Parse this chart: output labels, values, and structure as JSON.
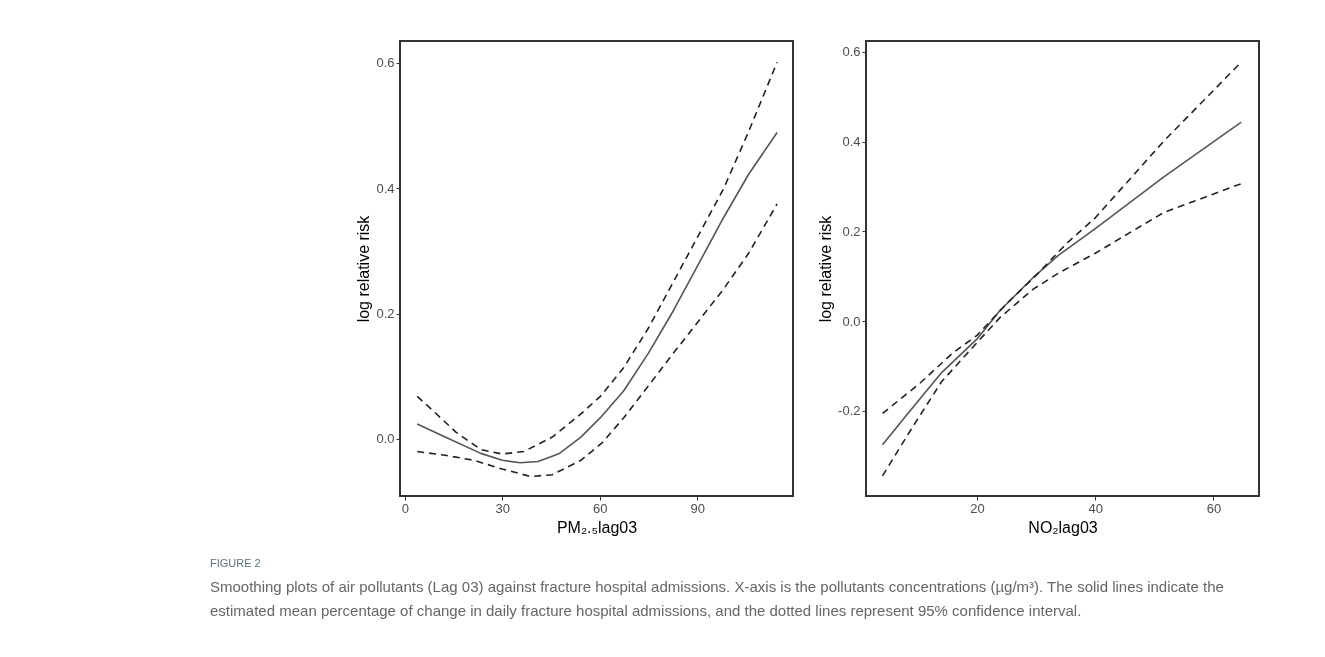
{
  "chart_data": [
    {
      "type": "line",
      "xlabel": "PM₂.₅lag03",
      "ylabel": "log relative risk",
      "xlim": [
        -1.5,
        119.5
      ],
      "ylim": [
        -0.091,
        0.635
      ],
      "xticks": [
        0,
        30,
        60,
        90
      ],
      "yticks": [
        {
          "value": 0,
          "label": "0.0"
        },
        {
          "value": 0.2,
          "label": "0.2"
        },
        {
          "value": 0.4,
          "label": "0.4"
        },
        {
          "value": 0.6,
          "label": "0.6"
        }
      ],
      "annotations": [
        "FIGURE 2",
        "Smoothing plots of air pollutants (Lag 03) against fracture hospital admissions. X-axis is the pollutants concentrations (µg/m³). The solid lines indicate the estimated mean percentage of change in daily fracture hospital admissions, and the dotted lines represent 95% confidence interval."
      ],
      "series": [
        {
          "color": "#555555",
          "line_style": "solid",
          "x": [
            3.8,
            12.4,
            23.4,
            30,
            35.5,
            41,
            47.6,
            54.2,
            60.2,
            67.4,
            75,
            82.7,
            90.4,
            98.1,
            105.8,
            114.6
          ],
          "values": [
            0.024,
            0.003,
            -0.023,
            -0.034,
            -0.038,
            -0.036,
            -0.023,
            0.003,
            0.034,
            0.077,
            0.137,
            0.205,
            0.279,
            0.353,
            0.422,
            0.489
          ]
        },
        {
          "color": "#222222",
          "line_style": "dashed",
          "x": [
            3.8,
            9.1,
            15.7,
            23.4,
            30,
            36.6,
            45.4,
            54.2,
            60.2,
            67.4,
            75,
            82.7,
            90.4,
            98.1,
            105.8,
            114.6
          ],
          "values": [
            0.068,
            0.043,
            0.011,
            -0.017,
            -0.024,
            -0.02,
            0.003,
            0.04,
            0.068,
            0.114,
            0.177,
            0.251,
            0.325,
            0.399,
            0.49,
            0.601
          ]
        },
        {
          "color": "#222222",
          "line_style": "dashed",
          "x": [
            3.8,
            12.4,
            21.2,
            30,
            38.8,
            45.4,
            54.2,
            60.8,
            67.4,
            75,
            82.7,
            90.4,
            98.1,
            105.8,
            114.6
          ],
          "values": [
            -0.02,
            -0.026,
            -0.034,
            -0.048,
            -0.06,
            -0.057,
            -0.034,
            -0.006,
            0.034,
            0.085,
            0.137,
            0.188,
            0.239,
            0.296,
            0.375
          ]
        }
      ]
    },
    {
      "type": "line",
      "xlabel": "NO₂lag03",
      "ylabel": "log relative risk",
      "xlim": [
        1.2,
        67.7
      ],
      "ylim": [
        -0.39,
        0.624
      ],
      "xticks": [
        20,
        40,
        60
      ],
      "yticks": [
        {
          "value": -0.2,
          "label": "-0.2"
        },
        {
          "value": 0,
          "label": "0.0"
        },
        {
          "value": 0.2,
          "label": "0.2"
        },
        {
          "value": 0.4,
          "label": "0.4"
        },
        {
          "value": 0.6,
          "label": "0.6"
        }
      ],
      "series": [
        {
          "color": "#555555",
          "line_style": "solid",
          "x": [
            4,
            7.8,
            14,
            20,
            23.9,
            29.5,
            33.8,
            40,
            51.6,
            64.7
          ],
          "values": [
            -0.276,
            -0.214,
            -0.115,
            -0.04,
            0.024,
            0.097,
            0.147,
            0.206,
            0.321,
            0.443
          ]
        },
        {
          "color": "#222222",
          "line_style": "dashed",
          "x": [
            4,
            10.3,
            15.9,
            20,
            25.1,
            30.1,
            35,
            40,
            51.6,
            64.7
          ],
          "values": [
            -0.206,
            -0.139,
            -0.071,
            -0.032,
            0.04,
            0.103,
            0.171,
            0.23,
            0.401,
            0.577
          ]
        },
        {
          "color": "#222222",
          "line_style": "dashed",
          "x": [
            4,
            9,
            14,
            20,
            23.9,
            29.5,
            33.8,
            40,
            51.6,
            64.7
          ],
          "values": [
            -0.345,
            -0.238,
            -0.135,
            -0.048,
            0.008,
            0.071,
            0.107,
            0.151,
            0.242,
            0.306
          ]
        }
      ]
    }
  ]
}
